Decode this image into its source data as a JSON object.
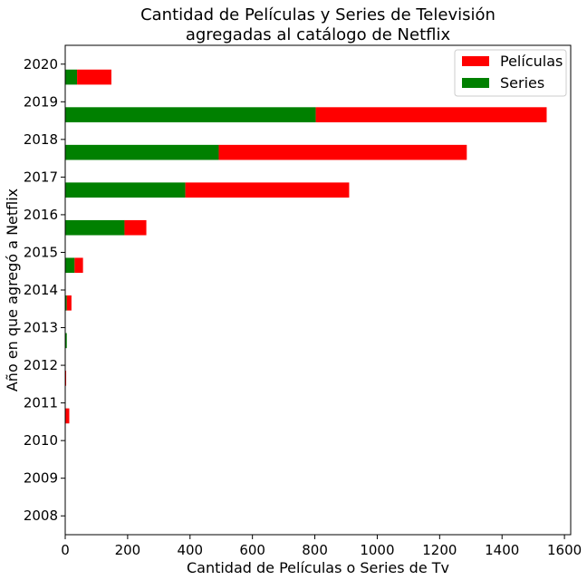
{
  "chart_data": {
    "type": "bar",
    "orientation": "horizontal",
    "stacked": true,
    "title": "Cantidad de Películas y Series de Televisión\nagregadas al catálogo de Netflix",
    "title_lines": [
      "Cantidad de Películas y Series de Televisión",
      "agregadas al catálogo de Netflix"
    ],
    "xlabel": "Cantidad de Películas o Series de Tv",
    "ylabel": "Año en que agregó a Netflix",
    "categories": [
      "2008",
      "2009",
      "2010",
      "2011",
      "2012",
      "2013",
      "2014",
      "2015",
      "2016",
      "2017",
      "2018",
      "2019",
      "2020"
    ],
    "series": [
      {
        "name": "Series",
        "color": "#008000",
        "values": [
          0,
          0,
          0,
          0,
          0,
          5,
          5,
          30,
          190,
          385,
          492,
          803,
          38
        ]
      },
      {
        "name": "Películas",
        "color": "#ff0000",
        "values": [
          0,
          0,
          0,
          13,
          3,
          0,
          15,
          27,
          70,
          525,
          795,
          740,
          110
        ]
      }
    ],
    "legend_order": [
      "Películas",
      "Series"
    ],
    "legend_position": "top-right",
    "xlim": [
      0,
      1620
    ],
    "xticks": [
      0,
      200,
      400,
      600,
      800,
      1000,
      1200,
      1400,
      1600
    ],
    "grid": false
  }
}
